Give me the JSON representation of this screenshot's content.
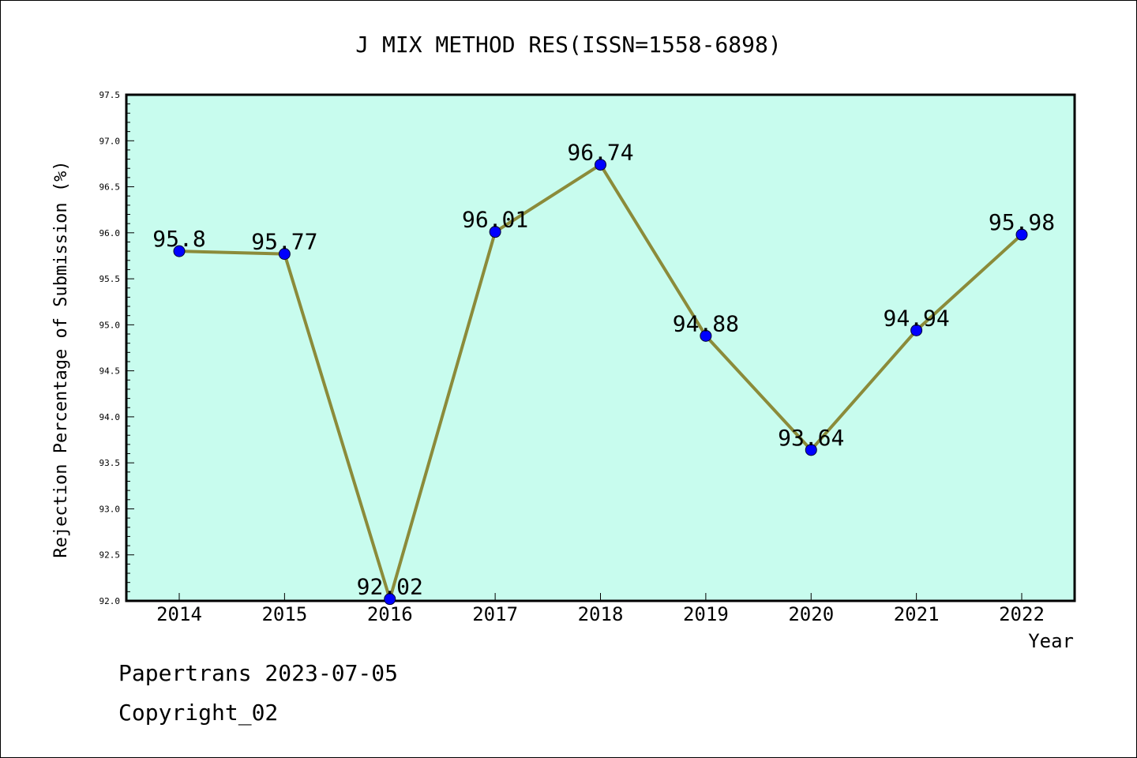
{
  "chart_data": {
    "type": "line",
    "title": "J MIX METHOD RES(ISSN=1558-6898)",
    "xlabel": "Year",
    "ylabel": "Rejection Percentage of Submission (%)",
    "categories": [
      "2014",
      "2015",
      "2016",
      "2017",
      "2018",
      "2019",
      "2020",
      "2021",
      "2022"
    ],
    "values": [
      95.8,
      95.77,
      92.02,
      96.01,
      96.74,
      94.88,
      93.64,
      94.94,
      95.98
    ],
    "data_labels": [
      "95.8",
      "95.77",
      "92.02",
      "96.01",
      "96.74",
      "94.88",
      "93.64",
      "94.94",
      "95.98"
    ],
    "ylim": [
      92.0,
      97.5
    ],
    "yticks": [
      "92.0",
      "92.5",
      "93.0",
      "93.5",
      "94.0",
      "94.5",
      "95.0",
      "95.5",
      "96.0",
      "96.5",
      "97.0",
      "97.5"
    ],
    "grid": false,
    "colors": {
      "plot_background": "#c8fcee",
      "line": "#8b8b3a",
      "marker": "#0000ff"
    }
  },
  "footer": {
    "line1": "Papertrans 2023-07-05",
    "line2": "Copyright_02"
  }
}
